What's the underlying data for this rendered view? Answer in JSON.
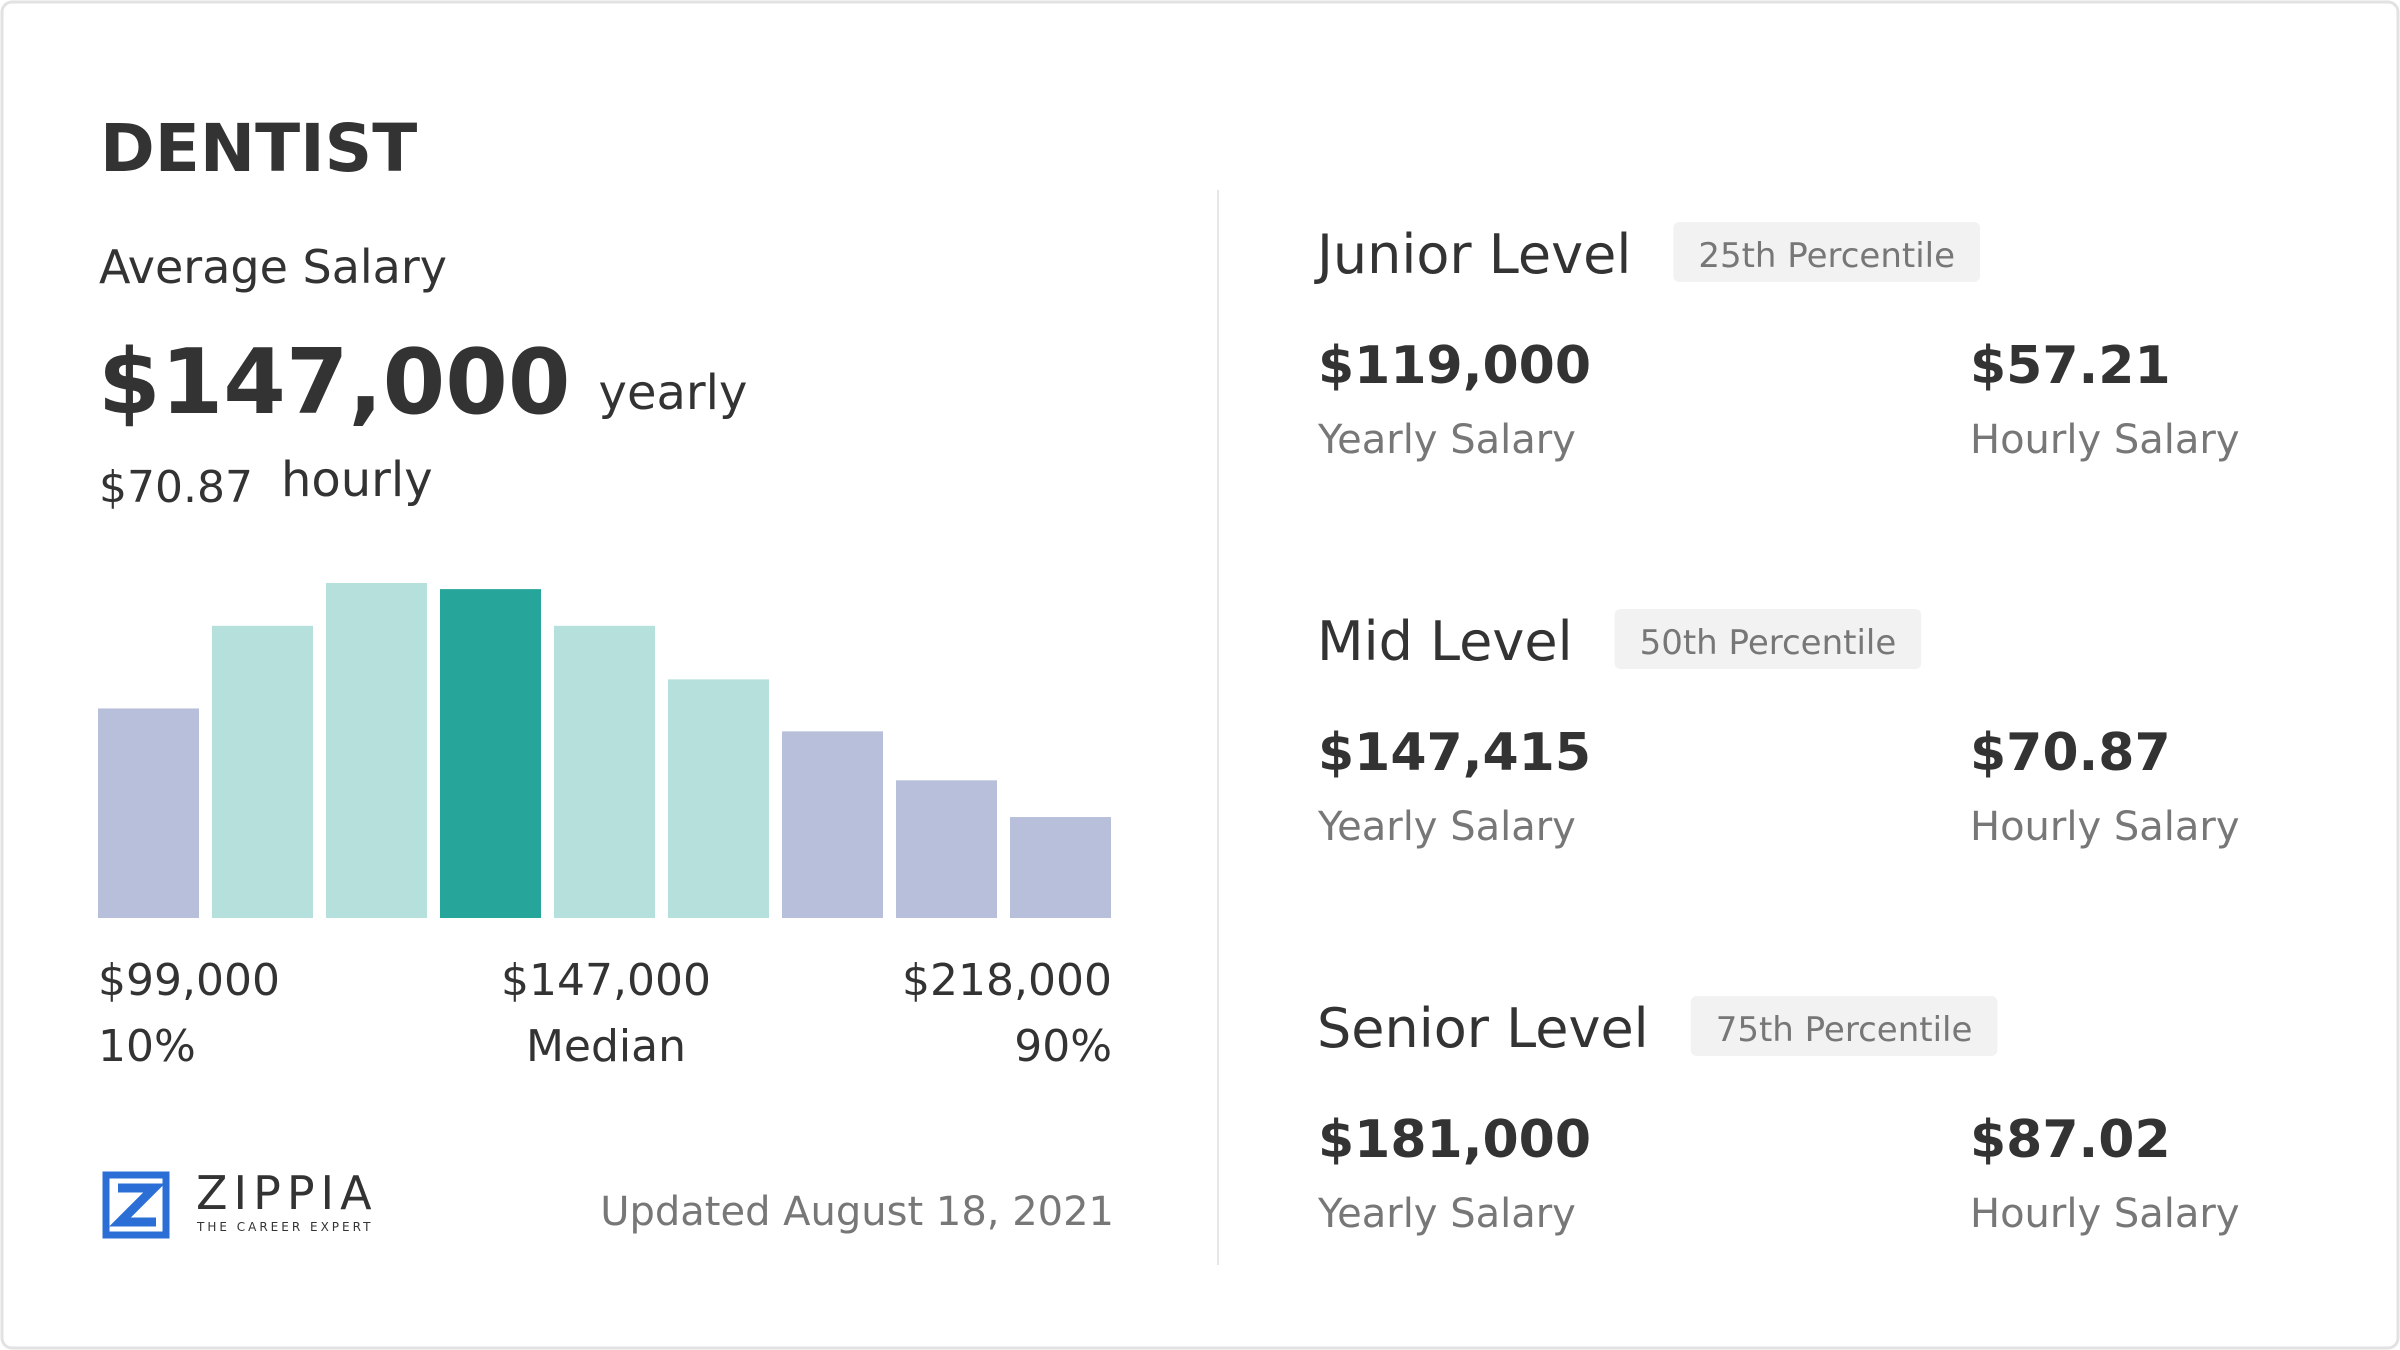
{
  "header": {
    "title": "DENTIST"
  },
  "average": {
    "label": "Average Salary",
    "yearly": "$147,000",
    "yearly_unit": "yearly",
    "hourly": "$70.87",
    "hourly_unit": "hourly"
  },
  "histogram": {
    "values": [
      137,
      191,
      219,
      215,
      191,
      156,
      122,
      90,
      66
    ],
    "colors": [
      "#b8bfdb",
      "#b5e0dc",
      "#b5e0dc",
      "#26a69a",
      "#b5e0dc",
      "#b5e0dc",
      "#b8bfdb",
      "#b8bfdb",
      "#b8bfdb"
    ]
  },
  "range": {
    "low": "$99,000",
    "low_label": "10%",
    "median": "$147,000",
    "median_label": "Median",
    "high": "$218,000",
    "high_label": "90%"
  },
  "logo": {
    "name": "ZIPPIA",
    "tagline": "THE CAREER EXPERT"
  },
  "updated": "Updated August 18, 2021",
  "levels": [
    {
      "title": "Junior Level",
      "percentile": "25th Percentile",
      "yearly": "$119,000",
      "yearly_label": "Yearly Salary",
      "hourly": "$57.21",
      "hourly_label": "Hourly Salary"
    },
    {
      "title": "Mid Level",
      "percentile": "50th Percentile",
      "yearly": "$147,415",
      "yearly_label": "Yearly Salary",
      "hourly": "$70.87",
      "hourly_label": "Hourly Salary"
    },
    {
      "title": "Senior Level",
      "percentile": "75th Percentile",
      "yearly": "$181,000",
      "yearly_label": "Yearly Salary",
      "hourly": "$87.02",
      "hourly_label": "Hourly Salary"
    }
  ]
}
